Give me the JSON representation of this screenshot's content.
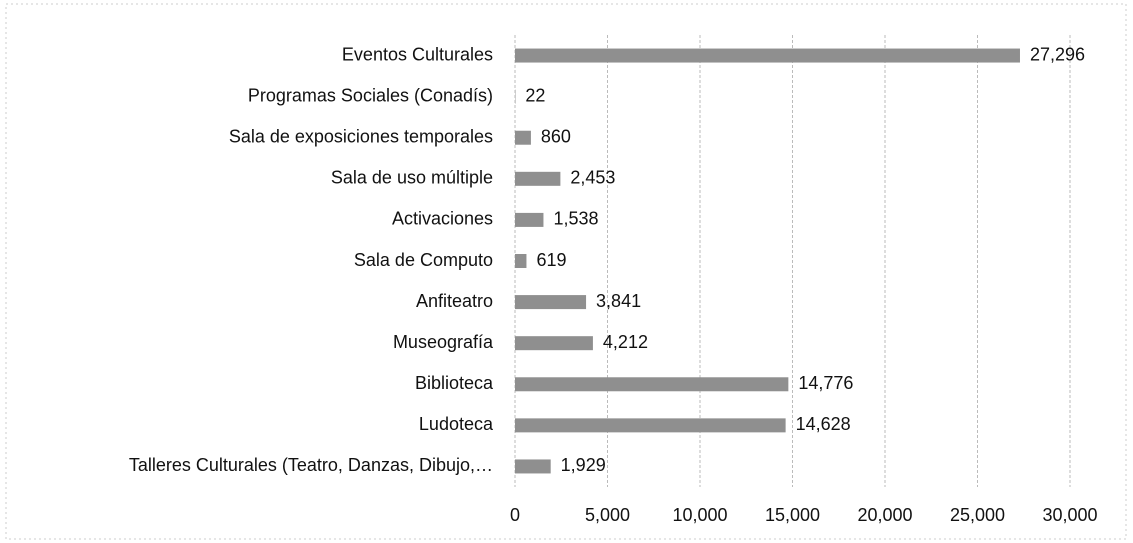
{
  "chart_data": {
    "type": "hbar",
    "categories": [
      "Eventos Culturales",
      "Programas Sociales (Conadís)",
      "Sala de exposiciones temporales",
      "Sala de uso múltiple",
      "Activaciones",
      "Sala de Computo",
      "Anfiteatro",
      "Museografía",
      "Biblioteca",
      "Ludoteca",
      "Talleres Culturales (Teatro, Danzas, Dibujo,…"
    ],
    "values": [
      27296,
      22,
      860,
      2453,
      1538,
      619,
      3841,
      4212,
      14776,
      14628,
      1929
    ],
    "value_labels": [
      "27,296",
      "22",
      "860",
      "2,453",
      "1,538",
      "619",
      "3,841",
      "4,212",
      "14,776",
      "14,628",
      "1,929"
    ],
    "color": "#8f8f8f",
    "xlim": [
      0,
      30000
    ],
    "xticks": [
      0,
      {
        "value": 5000,
        "label": "5,000"
      },
      {
        "value": 10000,
        "label": "10,000"
      },
      {
        "value": 15000,
        "label": "15,000"
      },
      {
        "value": 20000,
        "label": "20,000"
      },
      {
        "value": 25000,
        "label": "25,000"
      },
      {
        "value": 30000,
        "label": "30,000"
      }
    ],
    "grid": true
  }
}
